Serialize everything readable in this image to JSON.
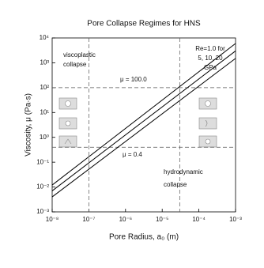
{
  "chart_data": {
    "type": "line",
    "title": "Pore Collapse Regimes for HNS",
    "x_label": "Pore Radius, a₀ (m)",
    "y_label": "Viscosity, μ (Pa·s)",
    "xscale": "log",
    "yscale": "log",
    "x": [
      1e-08,
      0.001
    ],
    "series": [
      {
        "color": "#000000",
        "values": [
          0.004,
          1500
        ]
      },
      {
        "color": "#000000",
        "values": [
          0.007,
          3000
        ]
      },
      {
        "color": "#000000",
        "values": [
          0.012,
          6000
        ]
      }
    ],
    "xlim": [
      1e-08,
      0.001
    ],
    "ylim": [
      0.001,
      10000.0
    ],
    "xticks": [
      {
        "value": 1e-08,
        "label": "10⁻⁸"
      },
      {
        "value": 1e-07,
        "label": "10⁻⁷"
      },
      {
        "value": 1e-06,
        "label": "10⁻⁶"
      },
      {
        "value": 1e-05,
        "label": "10⁻⁵"
      },
      {
        "value": 0.0001,
        "label": "10⁻⁴"
      },
      {
        "value": 0.001,
        "label": "10⁻³"
      }
    ],
    "yticks": [
      {
        "value": 0.001,
        "label": "10⁻³"
      },
      {
        "value": 0.01,
        "label": "10⁻²"
      },
      {
        "value": 0.1,
        "label": "10⁻¹"
      },
      {
        "value": 1,
        "label": "10⁰"
      },
      {
        "value": 10,
        "label": "10¹"
      },
      {
        "value": 100,
        "label": "10²"
      },
      {
        "value": 1000,
        "label": "10³"
      },
      {
        "value": 10000,
        "label": "10⁴"
      }
    ],
    "hlines": [
      100,
      0.4
    ],
    "vlines": [
      1e-07,
      3e-05
    ],
    "annotations": [
      {
        "text": [
          "viscoplastic",
          "collapse"
        ]
      },
      {
        "text": [
          "Re=1.0 for",
          "5, 10, 20",
          "GPa"
        ]
      },
      {
        "text": [
          "μ = 100.0"
        ]
      },
      {
        "text": [
          "μ = 0.4"
        ]
      },
      {
        "text": [
          "hydrodynamic",
          "collapse"
        ]
      }
    ]
  }
}
